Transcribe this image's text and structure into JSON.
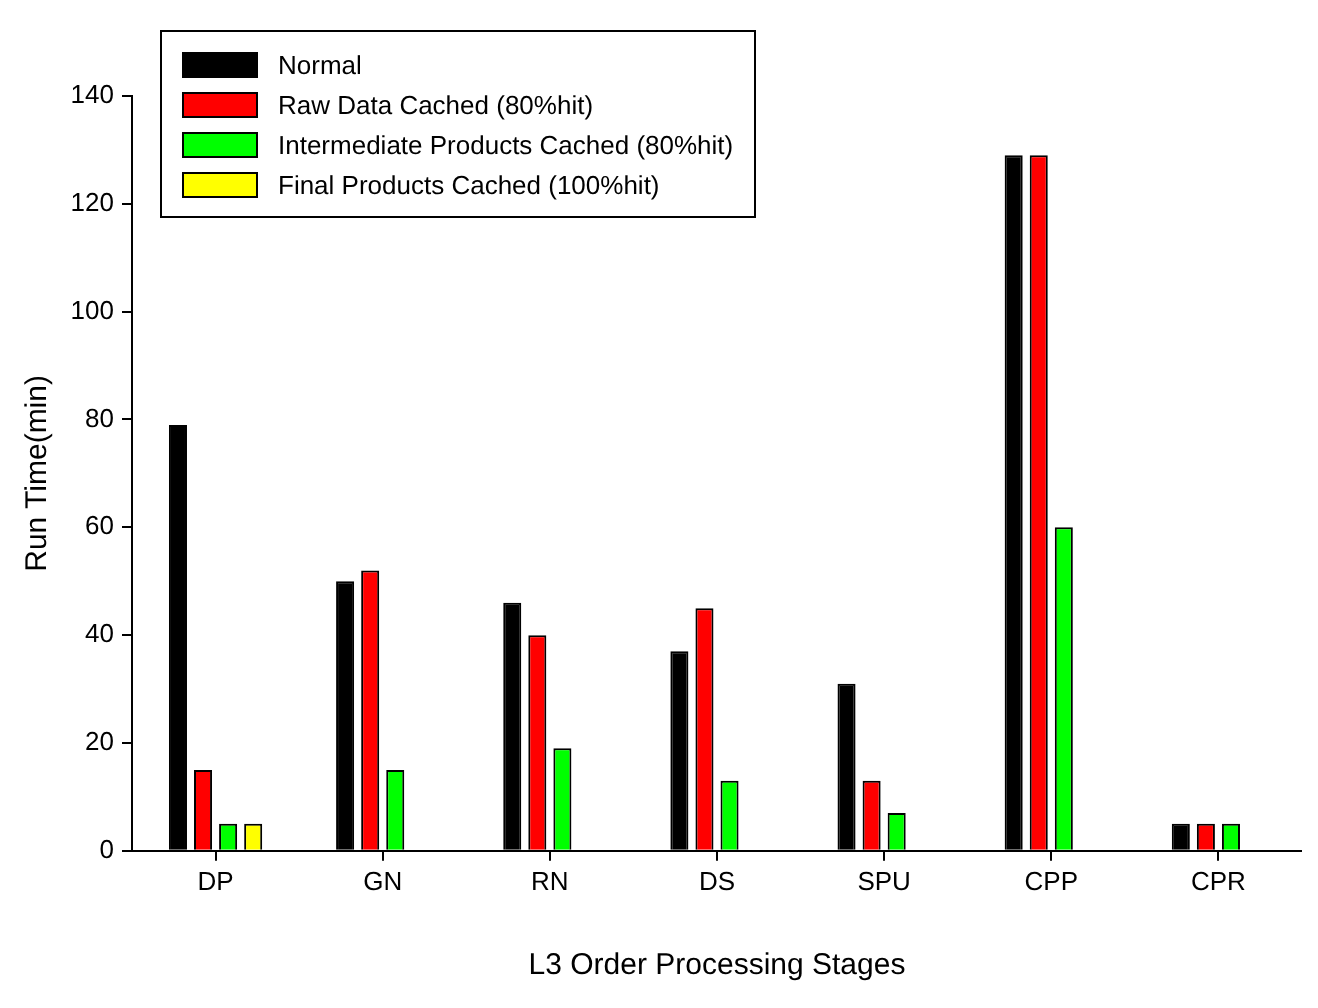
{
  "chart_data": {
    "type": "bar",
    "xlabel": "L3 Order Processing Stages",
    "ylabel": "Run Time(min)",
    "categories": [
      "DP",
      "GN",
      "RN",
      "DS",
      "SPU",
      "CPP",
      "CPR"
    ],
    "series": [
      {
        "name": "Normal",
        "color": "#000000",
        "values": [
          79,
          50,
          46,
          37,
          31,
          129,
          5
        ]
      },
      {
        "name": "Raw Data Cached (80%hit)",
        "color": "#ff0000",
        "values": [
          15,
          52,
          40,
          45,
          13,
          129,
          5
        ]
      },
      {
        "name": "Intermediate Products Cached (80%hit)",
        "color": "#00ff00",
        "values": [
          5,
          15,
          19,
          13,
          7,
          60,
          5
        ]
      },
      {
        "name": "Final Products Cached (100%hit)",
        "color": "#ffff00",
        "values": [
          5,
          null,
          null,
          null,
          null,
          null,
          null
        ]
      }
    ],
    "ylim": [
      0,
      140
    ],
    "yticks": [
      0,
      20,
      40,
      60,
      80,
      100,
      120,
      140
    ],
    "grid": false,
    "legend": "top left"
  }
}
